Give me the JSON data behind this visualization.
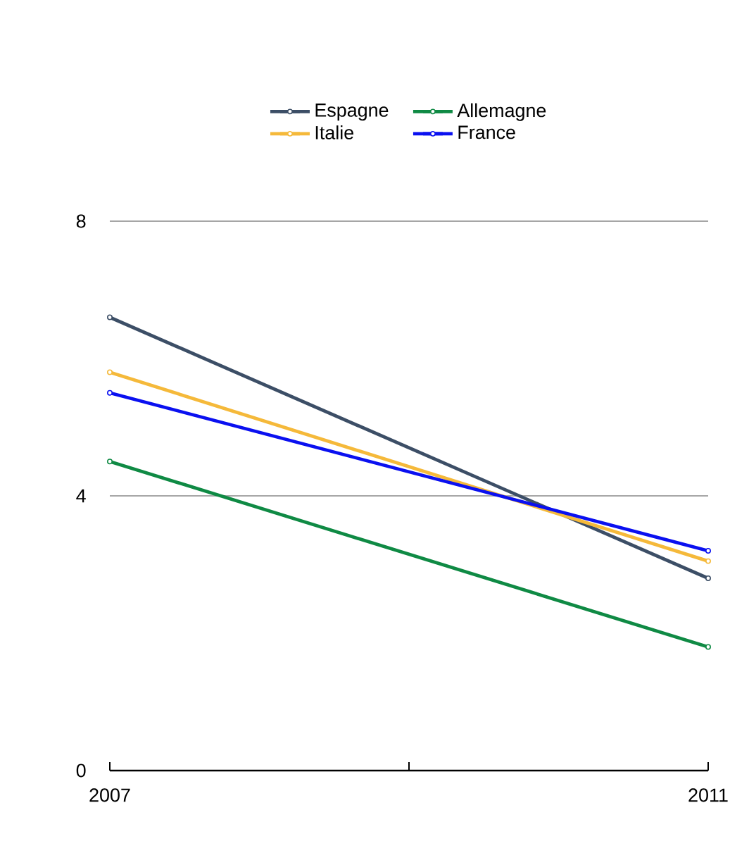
{
  "chart_data": {
    "type": "line",
    "x": [
      2007,
      2011
    ],
    "series": [
      {
        "name": "Espagne",
        "color": "#3c4e66",
        "values": [
          6.6,
          2.8
        ]
      },
      {
        "name": "Allemagne",
        "color": "#0f8a44",
        "values": [
          4.5,
          1.8
        ]
      },
      {
        "name": "Italie",
        "color": "#f5b93a",
        "values": [
          5.8,
          3.05
        ]
      },
      {
        "name": "France",
        "color": "#0a10f0",
        "values": [
          5.5,
          3.2
        ]
      }
    ],
    "xlim": [
      2007,
      2011
    ],
    "xticks": [
      2007,
      {
        "value": 2009,
        "label": null
      },
      2011
    ],
    "ylim": [
      0,
      8
    ],
    "yticks": [
      0,
      4,
      8
    ],
    "grid": "y",
    "legend": "top",
    "marker": "circle",
    "line_style": "solid"
  }
}
